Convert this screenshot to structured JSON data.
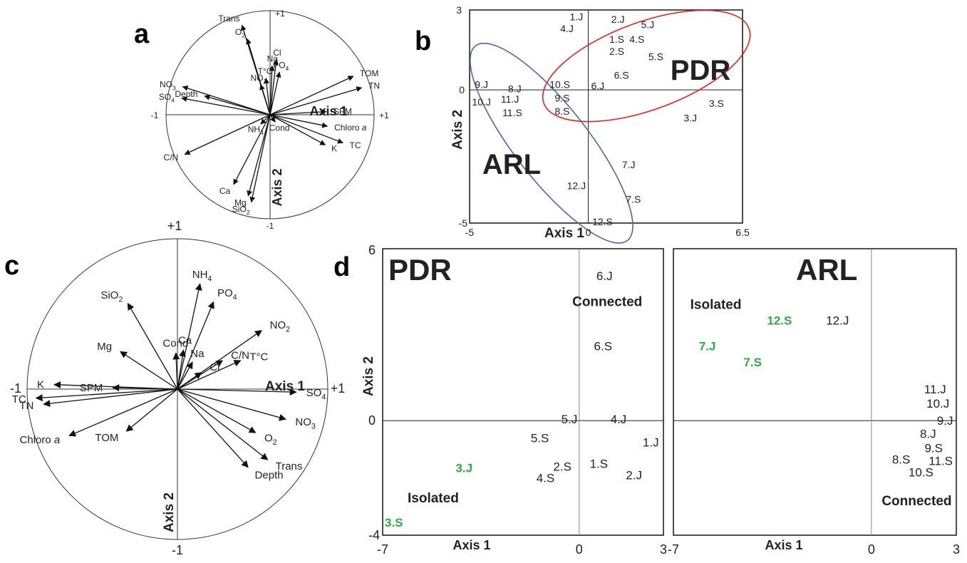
{
  "chart_data": [
    {
      "panel": "a",
      "type": "scatter",
      "subtype": "correlation-circle",
      "xlabel": "Axis 1",
      "ylabel": "Axis 2",
      "tick_labels": {
        "left": "-1",
        "right": "+1",
        "top": "+1",
        "bottom": "-1"
      },
      "xlim": [
        -1,
        1
      ],
      "ylim": [
        -1,
        1
      ],
      "vectors": [
        {
          "label": "Trans",
          "x": -0.27,
          "y": 0.86
        },
        {
          "label": "O2",
          "x": -0.22,
          "y": 0.73
        },
        {
          "label": "Cl",
          "x": 0.06,
          "y": 0.53
        },
        {
          "label": "Na",
          "x": 0.02,
          "y": 0.47
        },
        {
          "label": "PO4",
          "x": 0.09,
          "y": 0.41
        },
        {
          "label": "T°C",
          "x": -0.04,
          "y": 0.35
        },
        {
          "label": "NO2",
          "x": -0.09,
          "y": 0.29
        },
        {
          "label": "NO3",
          "x": -0.84,
          "y": 0.27
        },
        {
          "label": "SO4",
          "x": -0.85,
          "y": 0.16
        },
        {
          "label": "Depth",
          "x": -0.63,
          "y": 0.18
        },
        {
          "label": "TOM",
          "x": 0.8,
          "y": 0.37
        },
        {
          "label": "TN",
          "x": 0.88,
          "y": 0.26
        },
        {
          "label": "SPM",
          "x": 0.54,
          "y": 0.03
        },
        {
          "label": "Cond",
          "x": 0.05,
          "y": -0.07
        },
        {
          "label": "Chloro a",
          "x": 0.55,
          "y": -0.11
        },
        {
          "label": "TC",
          "x": 0.7,
          "y": -0.27
        },
        {
          "label": "K",
          "x": 0.53,
          "y": -0.29
        },
        {
          "label": "NH4",
          "x": -0.09,
          "y": -0.09
        },
        {
          "label": "C/N",
          "x": -0.82,
          "y": -0.38
        },
        {
          "label": "Ca",
          "x": -0.35,
          "y": -0.67
        },
        {
          "label": "Mg",
          "x": -0.21,
          "y": -0.78
        },
        {
          "label": "SiO2",
          "x": -0.18,
          "y": -0.84
        }
      ]
    },
    {
      "panel": "b",
      "type": "scatter",
      "xlabel": "Axis 1",
      "ylabel": "Axis 2",
      "xlim": [
        -5,
        6.5
      ],
      "ylim": [
        -5,
        3
      ],
      "xticks": [
        "-5",
        "0",
        "6.5"
      ],
      "yticks": [
        "3",
        "0",
        "-5"
      ],
      "group_labels": [
        "PDR",
        "ARL"
      ],
      "ellipse_colors": {
        "PDR": "#e8201c",
        "ARL": "#4a68a8"
      },
      "points": [
        {
          "label": "1.J",
          "x": -0.5,
          "y": 2.75
        },
        {
          "label": "4.J",
          "x": -0.9,
          "y": 2.3
        },
        {
          "label": "2.J",
          "x": 1.25,
          "y": 2.65
        },
        {
          "label": "5.J",
          "x": 2.5,
          "y": 2.45
        },
        {
          "label": "1.S",
          "x": 1.2,
          "y": 1.9
        },
        {
          "label": "4.S",
          "x": 2.05,
          "y": 1.9
        },
        {
          "label": "2.S",
          "x": 1.2,
          "y": 1.45
        },
        {
          "label": "5.S",
          "x": 2.85,
          "y": 1.25
        },
        {
          "label": "6.S",
          "x": 1.4,
          "y": 0.55
        },
        {
          "label": "6.J",
          "x": 0.4,
          "y": 0.15
        },
        {
          "label": "3.S",
          "x": 5.4,
          "y": -0.5
        },
        {
          "label": "3.J",
          "x": 4.3,
          "y": -1.05
        },
        {
          "label": "9.J",
          "x": -4.5,
          "y": 0.2
        },
        {
          "label": "8.J",
          "x": -3.1,
          "y": 0.05
        },
        {
          "label": "10.S",
          "x": -1.2,
          "y": 0.2
        },
        {
          "label": "11.J",
          "x": -3.3,
          "y": -0.35
        },
        {
          "label": "10.J",
          "x": -4.5,
          "y": -0.45
        },
        {
          "label": "9.S",
          "x": -1.1,
          "y": -0.3
        },
        {
          "label": "11.S",
          "x": -3.2,
          "y": -0.85
        },
        {
          "label": "8.S",
          "x": -1.1,
          "y": -0.8
        },
        {
          "label": "7.J",
          "x": 1.7,
          "y": -2.8
        },
        {
          "label": "12.J",
          "x": -0.5,
          "y": -3.6
        },
        {
          "label": "7.S",
          "x": 1.9,
          "y": -4.1
        },
        {
          "label": "12.S",
          "x": 0.6,
          "y": -4.95
        }
      ]
    },
    {
      "panel": "c",
      "type": "scatter",
      "subtype": "correlation-circle",
      "xlabel": "Axis 1",
      "ylabel": "Axis 2",
      "tick_labels": {
        "left": "-1",
        "right": "+1",
        "top": "+1",
        "bottom": "-1"
      },
      "xlim": [
        -1,
        1
      ],
      "ylim": [
        -1,
        1
      ],
      "vectors": [
        {
          "label": "SiO2",
          "x": -0.33,
          "y": 0.57
        },
        {
          "label": "NH4",
          "x": 0.15,
          "y": 0.7
        },
        {
          "label": "PO4",
          "x": 0.24,
          "y": 0.58
        },
        {
          "label": "NO2",
          "x": 0.56,
          "y": 0.39
        },
        {
          "label": "Mg",
          "x": -0.38,
          "y": 0.25
        },
        {
          "label": "Cond",
          "x": -0.01,
          "y": 0.24
        },
        {
          "label": "Ca",
          "x": 0.04,
          "y": 0.26
        },
        {
          "label": "Na",
          "x": 0.1,
          "y": 0.18
        },
        {
          "label": "C/N",
          "x": 0.3,
          "y": 0.19
        },
        {
          "label": "Cl",
          "x": 0.16,
          "y": 0.11
        },
        {
          "label": "T°C",
          "x": 0.42,
          "y": 0.19
        },
        {
          "label": "K",
          "x": -0.82,
          "y": 0.03
        },
        {
          "label": "SPM",
          "x": -0.43,
          "y": 0.01
        },
        {
          "label": "TC",
          "x": -0.94,
          "y": -0.06
        },
        {
          "label": "TN",
          "x": -0.89,
          "y": -0.1
        },
        {
          "label": "Chloro a",
          "x": -0.72,
          "y": -0.31
        },
        {
          "label": "TOM",
          "x": -0.34,
          "y": -0.28
        },
        {
          "label": "SO4",
          "x": 0.79,
          "y": -0.02
        },
        {
          "label": "NO3",
          "x": 0.72,
          "y": -0.2
        },
        {
          "label": "O2",
          "x": 0.52,
          "y": -0.29
        },
        {
          "label": "Trans",
          "x": 0.6,
          "y": -0.47
        },
        {
          "label": "Depth",
          "x": 0.47,
          "y": -0.52
        }
      ]
    },
    {
      "panel": "d",
      "type": "scatter",
      "title": "PDR",
      "xlabel": "Axis 1",
      "ylabel": "Axis 2",
      "xlim": [
        -7,
        3
      ],
      "ylim": [
        -4,
        6
      ],
      "xticks": [
        "-7",
        "0",
        "3"
      ],
      "yticks": [
        "6",
        "0",
        "-4"
      ],
      "highlight_color": "#2eaa46",
      "annotations": [
        "Connected",
        "Isolated"
      ],
      "points": [
        {
          "label": "6.J",
          "x": 0.9,
          "y": 5.05,
          "highlight": false
        },
        {
          "label": "6.S",
          "x": 0.85,
          "y": 2.6,
          "highlight": false
        },
        {
          "label": "5.J",
          "x": -0.35,
          "y": 0.05,
          "highlight": false
        },
        {
          "label": "4.J",
          "x": 1.4,
          "y": 0.05,
          "highlight": false
        },
        {
          "label": "5.S",
          "x": -1.4,
          "y": -0.6,
          "highlight": false
        },
        {
          "label": "1.J",
          "x": 2.55,
          "y": -0.75,
          "highlight": false
        },
        {
          "label": "3.J",
          "x": -4.1,
          "y": -1.65,
          "highlight": true
        },
        {
          "label": "2.S",
          "x": -0.6,
          "y": -1.6,
          "highlight": false
        },
        {
          "label": "1.S",
          "x": 0.7,
          "y": -1.5,
          "highlight": false
        },
        {
          "label": "4.S",
          "x": -1.2,
          "y": -2.0,
          "highlight": false
        },
        {
          "label": "2.J",
          "x": 1.95,
          "y": -1.9,
          "highlight": false
        },
        {
          "label": "3.S",
          "x": -6.6,
          "y": -3.55,
          "highlight": true
        }
      ]
    },
    {
      "panel": "d",
      "type": "scatter",
      "title": "ARL",
      "xlabel": "Axis 1",
      "ylabel": "",
      "xlim": [
        -7,
        3
      ],
      "ylim": [
        -4,
        6
      ],
      "xticks": [
        "-7",
        "0",
        "3"
      ],
      "highlight_color": "#2eaa46",
      "annotations": [
        "Isolated",
        "Connected"
      ],
      "points": [
        {
          "label": "12.S",
          "x": -3.25,
          "y": 3.5,
          "highlight": true
        },
        {
          "label": "12.J",
          "x": -1.2,
          "y": 3.5,
          "highlight": false
        },
        {
          "label": "7.J",
          "x": -5.8,
          "y": 2.6,
          "highlight": true
        },
        {
          "label": "7.S",
          "x": -4.2,
          "y": 2.05,
          "highlight": false
        },
        {
          "label": "11.J",
          "x": 2.25,
          "y": 1.1,
          "highlight": false
        },
        {
          "label": "10.J",
          "x": 2.35,
          "y": 0.6,
          "highlight": false
        },
        {
          "label": "9.J",
          "x": 2.6,
          "y": 0.0,
          "highlight": false
        },
        {
          "label": "8.J",
          "x": 2.0,
          "y": -0.45,
          "highlight": false
        },
        {
          "label": "9.S",
          "x": 2.2,
          "y": -0.95,
          "highlight": false
        },
        {
          "label": "8.S",
          "x": 1.05,
          "y": -1.35,
          "highlight": false
        },
        {
          "label": "11.S",
          "x": 2.45,
          "y": -1.4,
          "highlight": false
        },
        {
          "label": "10.S",
          "x": 1.75,
          "y": -1.8,
          "highlight": false
        }
      ]
    }
  ],
  "panel_letters": [
    "a",
    "b",
    "c",
    "d"
  ]
}
